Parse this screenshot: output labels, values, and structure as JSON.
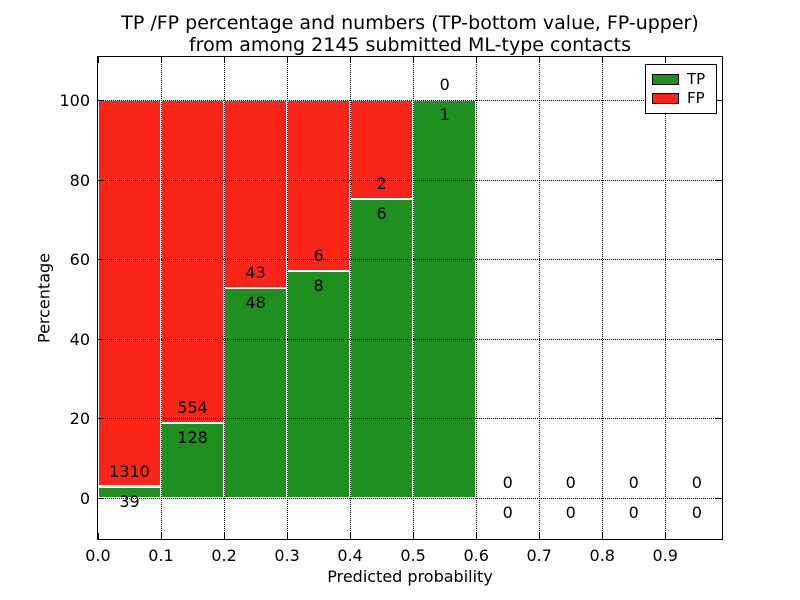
{
  "chart_data": {
    "type": "bar",
    "stacked": true,
    "title": "TP /FP percentage and numbers (TP-bottom value, FP-upper)",
    "subtitle": "from among 2145 submitted ML-type contacts",
    "xlabel": "Predicted probability",
    "ylabel": "Percentage",
    "total_contacts": 2145,
    "x_tick_values": [
      0.0,
      0.1,
      0.2,
      0.3,
      0.4,
      0.5,
      0.6,
      0.7,
      0.8,
      0.9
    ],
    "x_tick_labels": [
      "0.0",
      "0.1",
      "0.2",
      "0.3",
      "0.4",
      "0.5",
      "0.6",
      "0.7",
      "0.8",
      "0.9"
    ],
    "y_ticks": [
      0,
      20,
      40,
      60,
      80,
      100
    ],
    "xlim": [
      0.0,
      0.99
    ],
    "ylim": [
      -10.3,
      110.8
    ],
    "bin_width": 0.1,
    "grid": true,
    "legend_position": "upper right",
    "series": [
      {
        "name": "TP",
        "color": "#1f8f1f"
      },
      {
        "name": "FP",
        "color": "#fa2519"
      }
    ],
    "bins": [
      {
        "x_start": 0.0,
        "tp_count": 39,
        "fp_count": 1310,
        "tp_pct": 2.89,
        "fp_pct": 97.11
      },
      {
        "x_start": 0.1,
        "tp_count": 128,
        "fp_count": 554,
        "tp_pct": 18.77,
        "fp_pct": 81.23
      },
      {
        "x_start": 0.2,
        "tp_count": 48,
        "fp_count": 43,
        "tp_pct": 52.75,
        "fp_pct": 47.25
      },
      {
        "x_start": 0.3,
        "tp_count": 8,
        "fp_count": 6,
        "tp_pct": 57.14,
        "fp_pct": 42.86
      },
      {
        "x_start": 0.4,
        "tp_count": 6,
        "fp_count": 2,
        "tp_pct": 75.0,
        "fp_pct": 25.0
      },
      {
        "x_start": 0.5,
        "tp_count": 1,
        "fp_count": 0,
        "tp_pct": 100.0,
        "fp_pct": 0.0
      },
      {
        "x_start": 0.6,
        "tp_count": 0,
        "fp_count": 0,
        "tp_pct": 0,
        "fp_pct": 0
      },
      {
        "x_start": 0.7,
        "tp_count": 0,
        "fp_count": 0,
        "tp_pct": 0,
        "fp_pct": 0
      },
      {
        "x_start": 0.8,
        "tp_count": 0,
        "fp_count": 0,
        "tp_pct": 0,
        "fp_pct": 0
      },
      {
        "x_start": 0.9,
        "tp_count": 0,
        "fp_count": 0,
        "tp_pct": 0,
        "fp_pct": 0
      }
    ],
    "axis_color": "#000000",
    "grid_style": "dotted"
  }
}
